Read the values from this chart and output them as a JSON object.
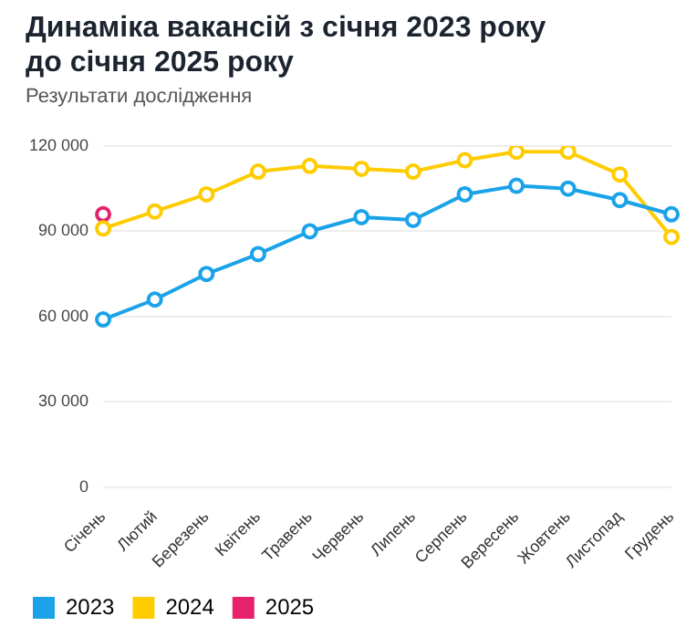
{
  "chart_data": {
    "type": "line",
    "title": "Динаміка вакансій з січня 2023 року до січня 2025 року",
    "subtitle": "Результати дослідження",
    "categories": [
      "Січень",
      "Лютий",
      "Березень",
      "Квітень",
      "Травень",
      "Червень",
      "Липень",
      "Серпень",
      "Вересень",
      "Жовтень",
      "Листопад",
      "Грудень"
    ],
    "series": [
      {
        "name": "2023",
        "color": "#1aa3e8",
        "values": [
          59000,
          66000,
          75000,
          82000,
          90000,
          95000,
          94000,
          103000,
          106000,
          105000,
          101000,
          96000
        ]
      },
      {
        "name": "2024",
        "color": "#ffcc00",
        "values": [
          91000,
          97000,
          103000,
          111000,
          113000,
          112000,
          111000,
          115000,
          118000,
          118000,
          110000,
          88000
        ]
      },
      {
        "name": "2025",
        "color": "#e5226b",
        "values": [
          96000,
          null,
          null,
          null,
          null,
          null,
          null,
          null,
          null,
          null,
          null,
          null
        ]
      }
    ],
    "ylim": [
      0,
      120000
    ],
    "yticks": [
      {
        "value": 0,
        "label": "0"
      },
      {
        "value": 30000,
        "label": "30 000"
      },
      {
        "value": 60000,
        "label": "60 000"
      },
      {
        "value": 90000,
        "label": "90 000"
      },
      {
        "value": 120000,
        "label": "120 000"
      }
    ],
    "grid": "y",
    "legend": "bottom left",
    "marker": "circle",
    "line_style": "solid"
  }
}
